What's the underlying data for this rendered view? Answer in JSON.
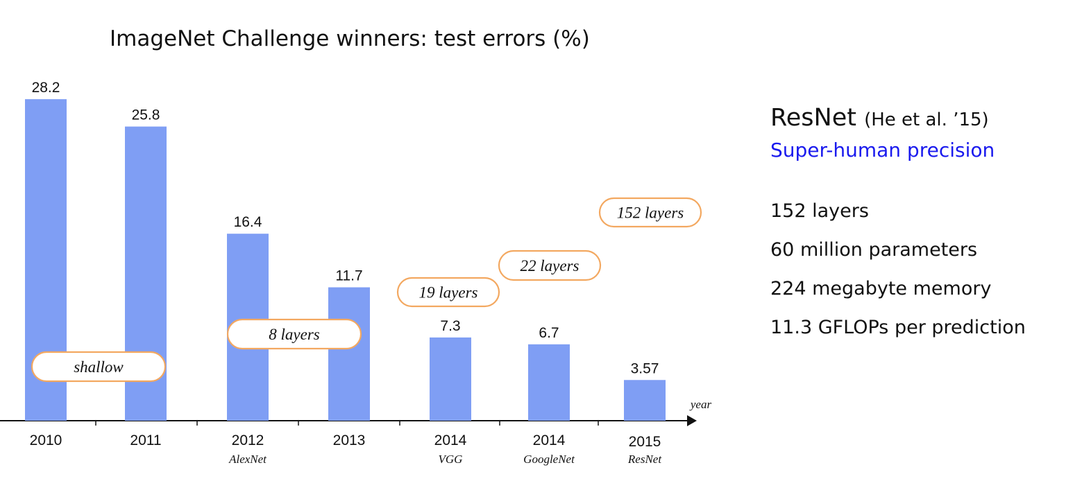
{
  "chart_data": {
    "type": "bar",
    "title": "ImageNet Challenge winners: test errors (%)",
    "categories": [
      "2010",
      "2011",
      "2012",
      "2013",
      "2014",
      "2014",
      "2015"
    ],
    "networks": [
      "",
      "",
      "AlexNet",
      "",
      "VGG",
      "GoogleNet",
      "ResNet"
    ],
    "values": [
      28.2,
      25.8,
      16.4,
      11.7,
      7.3,
      6.7,
      3.57
    ],
    "value_labels": [
      "28.2",
      "25.8",
      "16.4",
      "11.7",
      "7.3",
      "6.7",
      "3.57"
    ],
    "xlabel": "year",
    "ylabel": "",
    "ylim": [
      0,
      30
    ],
    "bar_color": "#7f9ef4",
    "annotations": [
      "shallow",
      "8 layers",
      "19 layers",
      "22 layers",
      "152 layers"
    ],
    "annotation_border_color": "#f3a860"
  },
  "side": {
    "title": "ResNet",
    "title_ref": "(He et al. ’15)",
    "subtitle": "Super-human precision",
    "subtitle_color": "#1a1aee",
    "stats": [
      "152 layers",
      "60 million parameters",
      "224 megabyte memory",
      "11.3 GFLOPs per prediction"
    ]
  }
}
